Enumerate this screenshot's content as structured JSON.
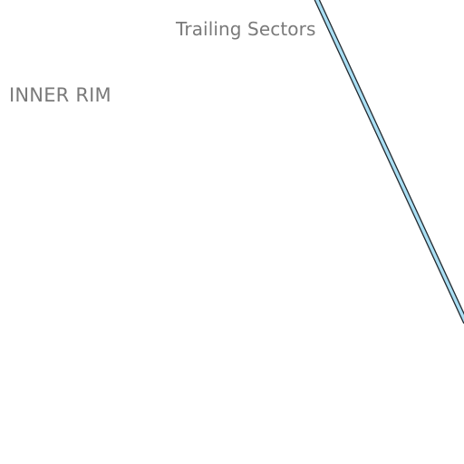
{
  "map": {
    "labels": {
      "trailing_sectors": "Trailing Sectors",
      "inner_rim": "INNER RIM"
    },
    "colors": {
      "background": "#ffffff",
      "label_text": "#7a7a7a",
      "lane_fill": "#a9def3",
      "lane_casing": "#222a30"
    }
  }
}
